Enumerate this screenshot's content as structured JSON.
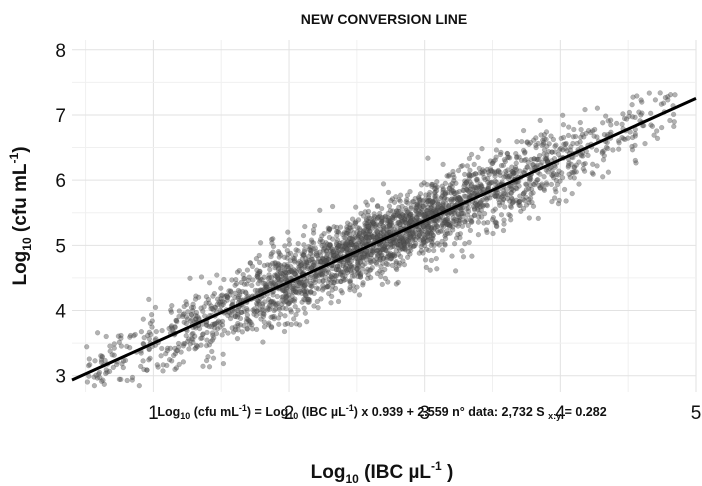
{
  "chart_data": {
    "type": "scatter",
    "title": "NEW CONVERSION LINE",
    "xlabel": {
      "pre": "Log",
      "sub": "10",
      "mid": " (IBC µL",
      "sup": "-1",
      "post": " )"
    },
    "ylabel": {
      "pre": "Log",
      "sub": "10",
      "mid": " (cfu mL",
      "sup": "-1",
      "post": ")"
    },
    "xlim": [
      0.4,
      5.0
    ],
    "ylim": [
      2.75,
      8.15
    ],
    "x_ticks": [
      1,
      2,
      3,
      4,
      5
    ],
    "y_ticks": [
      3,
      4,
      5,
      6,
      7,
      8
    ],
    "grid": true,
    "legend": "none",
    "point_color": "#555555",
    "line_color": "#000000",
    "fit_line": {
      "slope": 0.939,
      "intercept": 2.559
    },
    "scatter_summary": {
      "count": 2732,
      "x_range": [
        0.5,
        4.85
      ],
      "residual_sd": 0.282
    },
    "annotation": {
      "p1": "Log",
      "p1_sub": "10",
      "p2": " (cfu mL",
      "p2_sup": "-1",
      "p3": ") = Log",
      "p3_sub": "10",
      "p4": " (IBC µL",
      "p4_sup": "-1",
      "p5": ") x 0.939 + 2.559 n° data: 2,732 S ",
      "p5_sub": "x:y",
      "p6": " = 0.282"
    }
  }
}
